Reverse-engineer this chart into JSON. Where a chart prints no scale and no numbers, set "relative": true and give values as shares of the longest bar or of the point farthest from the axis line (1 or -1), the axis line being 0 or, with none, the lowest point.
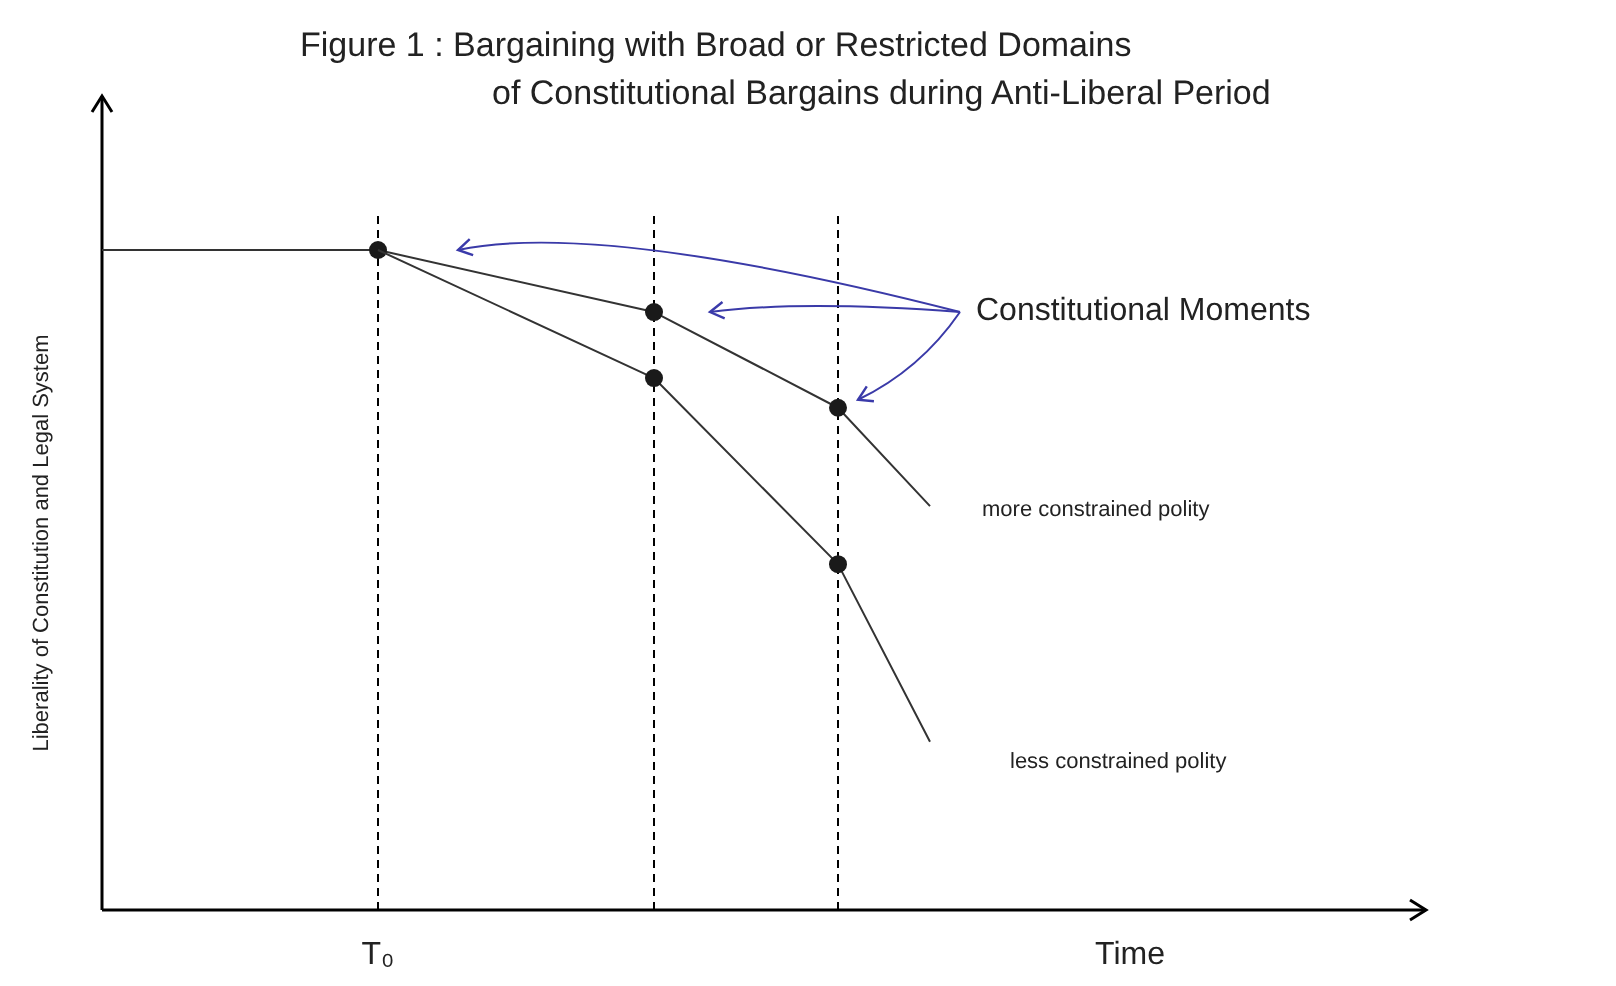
{
  "chart_data": {
    "type": "line",
    "relative": true,
    "title": "Figure 1 : Bargaining with Broad or Restricted Domains\nof Constitutional Bargains during Anti-Liberal Period",
    "xlabel": "Time",
    "ylabel": "Liberality of Constitution and Legal System",
    "categories": [
      null,
      null,
      null,
      null,
      null,
      null,
      null,
      null,
      null,
      null
    ],
    "marker": "circle",
    "line_style": "solid",
    "grid": "x",
    "series": [
      {
        "name": "more constrained polity",
        "color": "#333333",
        "values": [
          1,
          null,
          null,
          1,
          null,
          null,
          0.906,
          null,
          0.761,
          0.612
        ]
      },
      {
        "name": "less constrained polity",
        "color": "#333333",
        "values": [
          null,
          null,
          null,
          1,
          null,
          null,
          0.806,
          null,
          0.524,
          0.255
        ]
      }
    ],
    "annotations": [
      "Constitutional Moments",
      "T₀"
    ]
  }
}
